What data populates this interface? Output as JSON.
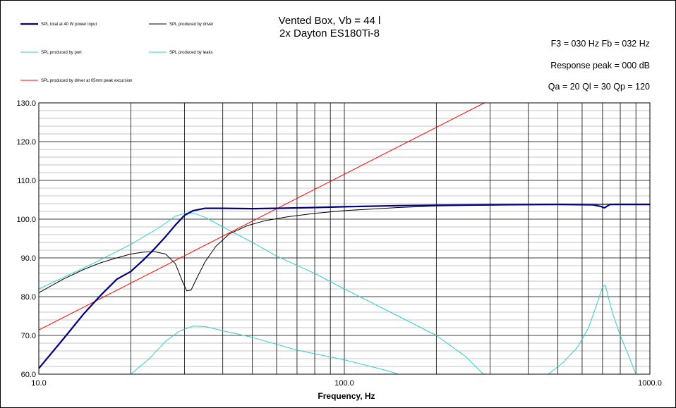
{
  "chart_data": {
    "type": "line",
    "title": [
      "Vented Box, Vb = 44 l",
      "2x Dayton ES180Ti-8"
    ],
    "info": [
      "F3 = 030  Hz   Fb = 032  Hz",
      "Response peak = 000  dB",
      "Qa = 20   Ql = 30   Qp = 120"
    ],
    "xlabel": "Frequency, Hz",
    "ylabel": "",
    "xscale": "log",
    "xlim": [
      10,
      1000
    ],
    "ylim": [
      60,
      130
    ],
    "x_tick_labels": [
      "10.0",
      "100.0",
      "1000.0"
    ],
    "y_tick_labels": [
      "60.0",
      "70.0",
      "80.0",
      "90.0",
      "100.0",
      "110.0",
      "120.0",
      "130.0"
    ],
    "grid": true,
    "legend_position": "top-left",
    "series": [
      {
        "name": "SPL total at 40 W power input",
        "color": "#000080",
        "points": [
          [
            10,
            61.5
          ],
          [
            12,
            69
          ],
          [
            14,
            75.5
          ],
          [
            16,
            80.5
          ],
          [
            18,
            84.5
          ],
          [
            20,
            86.5
          ],
          [
            22,
            89.5
          ],
          [
            24,
            92.5
          ],
          [
            26,
            95.5
          ],
          [
            28,
            98.5
          ],
          [
            30,
            101
          ],
          [
            32,
            102.2
          ],
          [
            35,
            102.8
          ],
          [
            40,
            102.8
          ],
          [
            50,
            102.7
          ],
          [
            60,
            102.8
          ],
          [
            80,
            103
          ],
          [
            100,
            103.2
          ],
          [
            150,
            103.5
          ],
          [
            200,
            103.6
          ],
          [
            300,
            103.7
          ],
          [
            500,
            103.8
          ],
          [
            650,
            103.7
          ],
          [
            690,
            103.3
          ],
          [
            710,
            102.9
          ],
          [
            740,
            103.8
          ],
          [
            800,
            103.8
          ],
          [
            1000,
            103.8
          ]
        ]
      },
      {
        "name": "SPL produced by driver",
        "color": "#000000",
        "points": [
          [
            10,
            81
          ],
          [
            12,
            84.5
          ],
          [
            14,
            87
          ],
          [
            16,
            88.8
          ],
          [
            18,
            90
          ],
          [
            20,
            91
          ],
          [
            22,
            91.5
          ],
          [
            24,
            91.6
          ],
          [
            26,
            91
          ],
          [
            28,
            88.5
          ],
          [
            29.5,
            84
          ],
          [
            30.5,
            81.5
          ],
          [
            31.5,
            81.7
          ],
          [
            33,
            85
          ],
          [
            35,
            89
          ],
          [
            38,
            93
          ],
          [
            42,
            96.2
          ],
          [
            48,
            98.3
          ],
          [
            55,
            99.6
          ],
          [
            65,
            100.6
          ],
          [
            80,
            101.5
          ],
          [
            100,
            102.2
          ],
          [
            150,
            103
          ],
          [
            200,
            103.4
          ],
          [
            300,
            103.6
          ],
          [
            500,
            103.8
          ],
          [
            1000,
            103.8
          ]
        ]
      },
      {
        "name": "SPL produced by port",
        "color": "#33CCCC",
        "points": [
          [
            10,
            82
          ],
          [
            15,
            88.5
          ],
          [
            20,
            93.5
          ],
          [
            25,
            98
          ],
          [
            28,
            100.8
          ],
          [
            30,
            101.5
          ],
          [
            32,
            101.6
          ],
          [
            35,
            100.5
          ],
          [
            40,
            98
          ],
          [
            50,
            94
          ],
          [
            60,
            90.5
          ],
          [
            80,
            86
          ],
          [
            100,
            82
          ],
          [
            150,
            75
          ],
          [
            200,
            70
          ],
          [
            250,
            64.5
          ],
          [
            285,
            60
          ]
        ]
      },
      {
        "name": "SPL produced by leaks",
        "color": "#33CCCC",
        "points": [
          [
            20,
            60
          ],
          [
            23,
            64
          ],
          [
            26,
            68.5
          ],
          [
            29,
            71.2
          ],
          [
            32,
            72.4
          ],
          [
            35,
            72.3
          ],
          [
            40,
            71.2
          ],
          [
            50,
            69.5
          ],
          [
            70,
            66.2
          ],
          [
            100,
            63.7
          ],
          [
            140,
            60.8
          ],
          [
            150,
            60
          ]
        ]
      },
      {
        "name": "",
        "color": "#33CCCC",
        "points": [
          [
            465,
            60
          ],
          [
            520,
            63
          ],
          [
            580,
            67
          ],
          [
            630,
            72
          ],
          [
            670,
            78
          ],
          [
            700,
            82.5
          ],
          [
            715,
            83
          ],
          [
            730,
            80
          ],
          [
            760,
            75
          ],
          [
            800,
            70
          ],
          [
            850,
            65
          ],
          [
            900,
            60
          ]
        ]
      },
      {
        "name": "SPL produced by driver at 05mm peak excursion",
        "color": "#FF0000",
        "points": [
          [
            10,
            71.4
          ],
          [
            287,
            130
          ]
        ]
      }
    ]
  }
}
